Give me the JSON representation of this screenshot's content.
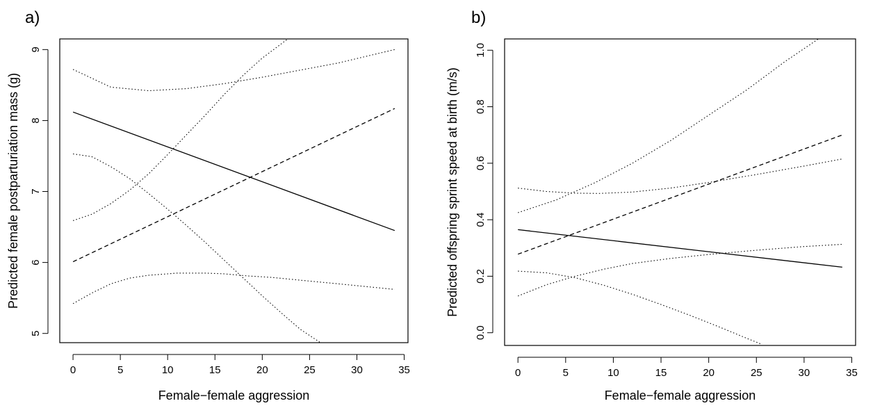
{
  "chart_data": [
    {
      "type": "line",
      "panel_label": "a)",
      "xlabel": "Female−female aggression",
      "ylabel": "Predicted female postparturiation mass (g)",
      "xlim": [
        -1.4,
        35.4
      ],
      "ylim": [
        4.87,
        9.15
      ],
      "xticks": [
        "0",
        "5",
        "10",
        "15",
        "20",
        "25",
        "30",
        "35"
      ],
      "yticks": [
        "5",
        "6",
        "7",
        "8",
        "9"
      ],
      "series": [
        {
          "name": "solid fit",
          "style": "solid",
          "x": [
            0,
            34
          ],
          "y": [
            8.12,
            6.45
          ]
        },
        {
          "name": "dashed fit",
          "style": "dashed",
          "x": [
            0,
            34
          ],
          "y": [
            6.01,
            8.17
          ]
        },
        {
          "name": "solid upper CI",
          "style": "dotted",
          "x": [
            0,
            4,
            8,
            12,
            16,
            20,
            24,
            28,
            34
          ],
          "y": [
            8.72,
            8.47,
            8.42,
            8.45,
            8.52,
            8.61,
            8.71,
            8.81,
            9.0
          ]
        },
        {
          "name": "solid lower CI",
          "style": "dotted",
          "x": [
            0,
            2,
            4,
            6,
            8,
            10,
            11,
            14,
            16,
            18.5,
            21,
            24,
            28,
            34
          ],
          "y": [
            5.42,
            5.57,
            5.7,
            5.78,
            5.82,
            5.84,
            5.85,
            5.85,
            5.84,
            5.81,
            5.79,
            5.75,
            5.7,
            5.62
          ]
        },
        {
          "name": "dashed upper CI",
          "style": "dotted",
          "x": [
            0,
            2,
            4,
            6,
            8,
            10,
            12,
            14,
            16,
            18,
            20,
            22.7
          ],
          "y": [
            6.59,
            6.68,
            6.83,
            7.02,
            7.25,
            7.52,
            7.8,
            8.08,
            8.37,
            8.64,
            8.88,
            9.15
          ]
        },
        {
          "name": "dashed lower CI",
          "style": "dotted",
          "x": [
            0,
            2,
            4,
            6,
            8,
            10,
            12,
            14,
            16,
            18,
            20,
            22,
            24,
            26.6
          ],
          "y": [
            7.53,
            7.49,
            7.35,
            7.18,
            6.97,
            6.75,
            6.52,
            6.28,
            6.03,
            5.78,
            5.53,
            5.29,
            5.06,
            4.83
          ]
        }
      ]
    },
    {
      "type": "line",
      "panel_label": "b)",
      "xlabel": "Female−female aggression",
      "ylabel": "Predicted offspring sprint speed at birth (m/s)",
      "xlim": [
        -1.4,
        35.4
      ],
      "ylim": [
        -0.045,
        1.04
      ],
      "xticks": [
        "0",
        "5",
        "10",
        "15",
        "20",
        "25",
        "30",
        "35"
      ],
      "yticks": [
        "0.0",
        "0.2",
        "0.4",
        "0.6",
        "0.8",
        "1.0"
      ],
      "series": [
        {
          "name": "solid fit",
          "style": "solid",
          "x": [
            0,
            34
          ],
          "y": [
            0.365,
            0.232
          ]
        },
        {
          "name": "dashed fit",
          "style": "dashed",
          "x": [
            0,
            34
          ],
          "y": [
            0.278,
            0.7
          ]
        },
        {
          "name": "solid upper CI",
          "style": "dotted",
          "x": [
            0,
            3,
            6,
            8.5,
            12,
            16,
            20,
            25,
            30,
            34
          ],
          "y": [
            0.512,
            0.5,
            0.494,
            0.493,
            0.498,
            0.512,
            0.532,
            0.56,
            0.59,
            0.615
          ]
        },
        {
          "name": "solid lower CI",
          "style": "dotted",
          "x": [
            0,
            3,
            6,
            9,
            12,
            16,
            20,
            25,
            30,
            34
          ],
          "y": [
            0.13,
            0.17,
            0.2,
            0.225,
            0.245,
            0.263,
            0.277,
            0.292,
            0.305,
            0.313
          ]
        },
        {
          "name": "dashed upper CI",
          "style": "dotted",
          "x": [
            0,
            4,
            8,
            12,
            16,
            20,
            24,
            28,
            31.5
          ],
          "y": [
            0.425,
            0.47,
            0.53,
            0.6,
            0.68,
            0.77,
            0.86,
            0.96,
            1.04
          ]
        },
        {
          "name": "dashed lower CI",
          "style": "dotted",
          "x": [
            0,
            3,
            6,
            9,
            12,
            15,
            18,
            21,
            24,
            25.5
          ],
          "y": [
            0.218,
            0.212,
            0.195,
            0.168,
            0.136,
            0.1,
            0.062,
            0.022,
            -0.02,
            -0.04
          ]
        }
      ]
    }
  ]
}
